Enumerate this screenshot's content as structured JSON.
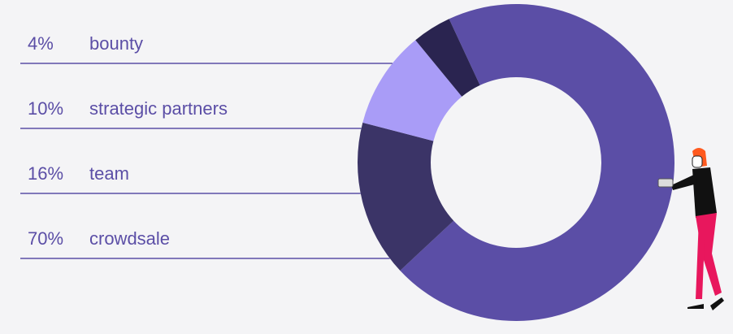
{
  "chart_data": {
    "type": "donut",
    "categories": [
      "bounty",
      "strategic partners",
      "team",
      "crowdsale"
    ],
    "values": [
      4,
      10,
      16,
      70
    ],
    "value_labels": [
      "4%",
      "10%",
      "16%",
      "70%"
    ],
    "colors": [
      "#2a2450",
      "#a99cf7",
      "#3b3467",
      "#5b4ea6"
    ]
  }
}
